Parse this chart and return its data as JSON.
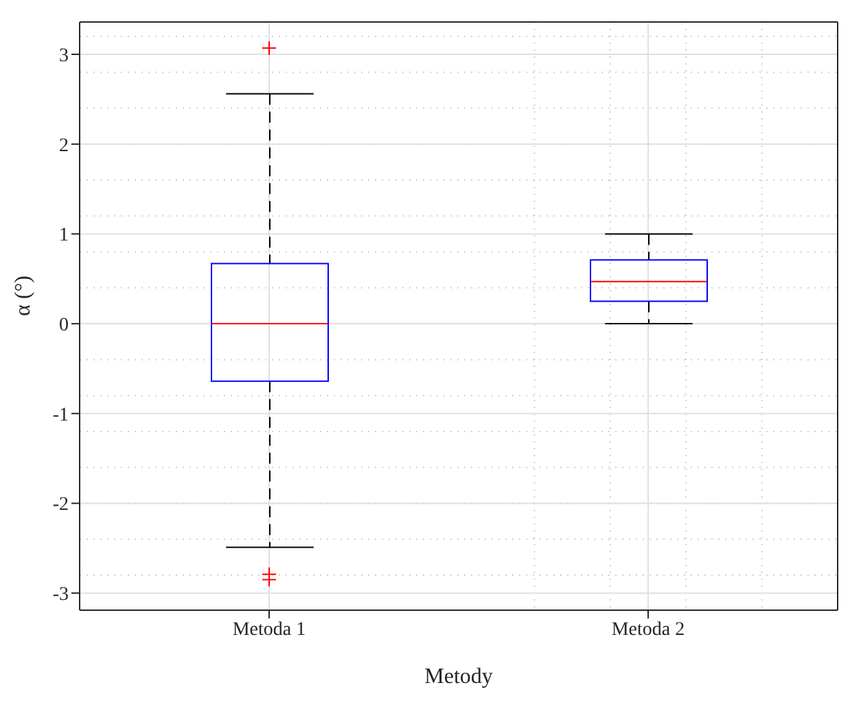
{
  "chart_data": {
    "type": "box",
    "xlabel": "Metody",
    "ylabel": "α (°)",
    "categories": [
      "Metoda 1",
      "Metoda 2"
    ],
    "boxes": [
      {
        "low": -2.49,
        "q1": -0.64,
        "median": 0,
        "q3": 0.67,
        "high": 2.56,
        "outliers": [
          3.07,
          -2.79,
          -2.85
        ]
      },
      {
        "low": 0,
        "q1": 0.25,
        "median": 0.47,
        "q3": 0.71,
        "high": 1
      }
    ],
    "color": "#0000ff",
    "ylim": [
      -3.19,
      3.36
    ],
    "yticks": [
      -3,
      -2,
      -1,
      0,
      1,
      2,
      3
    ],
    "grid": true
  }
}
